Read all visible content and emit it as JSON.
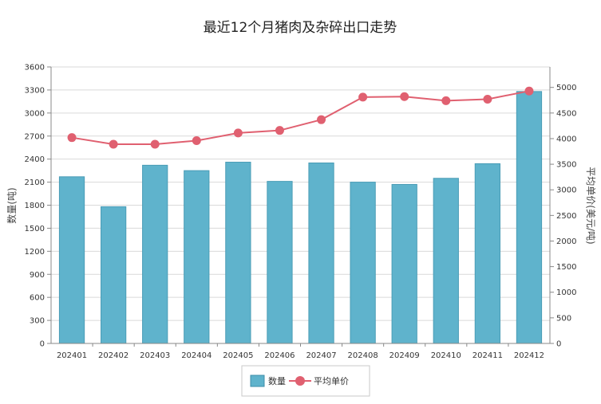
{
  "chart_data": {
    "type": "bar",
    "title": "最近12个月猪肉及杂碎出口走势",
    "categories": [
      "202401",
      "202402",
      "202403",
      "202404",
      "202405",
      "202406",
      "202407",
      "202408",
      "202409",
      "202410",
      "202411",
      "202412"
    ],
    "series": [
      {
        "name": "数量",
        "type": "bar",
        "axis": "left",
        "color": "#5fb3cc",
        "values": [
          2170,
          1780,
          2320,
          2250,
          2360,
          2110,
          2350,
          2100,
          2070,
          2150,
          2340,
          3280
        ]
      },
      {
        "name": "平均单价",
        "type": "line",
        "axis": "right",
        "color": "#e06070",
        "values": [
          4020,
          3890,
          3890,
          3960,
          4110,
          4160,
          4370,
          4810,
          4820,
          4740,
          4770,
          4930
        ]
      }
    ],
    "y_left": {
      "label": "数量(吨)",
      "range": [
        0,
        3600
      ],
      "ticks": [
        "0",
        "300",
        "600",
        "900",
        "1200",
        "1500",
        "1800",
        "2100",
        "2400",
        "2700",
        "3000",
        "3300",
        "3600"
      ]
    },
    "y_right": {
      "label": "平均单价(美元/吨)",
      "range": [
        0,
        5400
      ],
      "ticks": [
        "0",
        "500",
        "1000",
        "1500",
        "2000",
        "2500",
        "3000",
        "3500",
        "4000",
        "4500",
        "5000"
      ]
    },
    "grid": true,
    "legend_position": "bottom-center"
  }
}
